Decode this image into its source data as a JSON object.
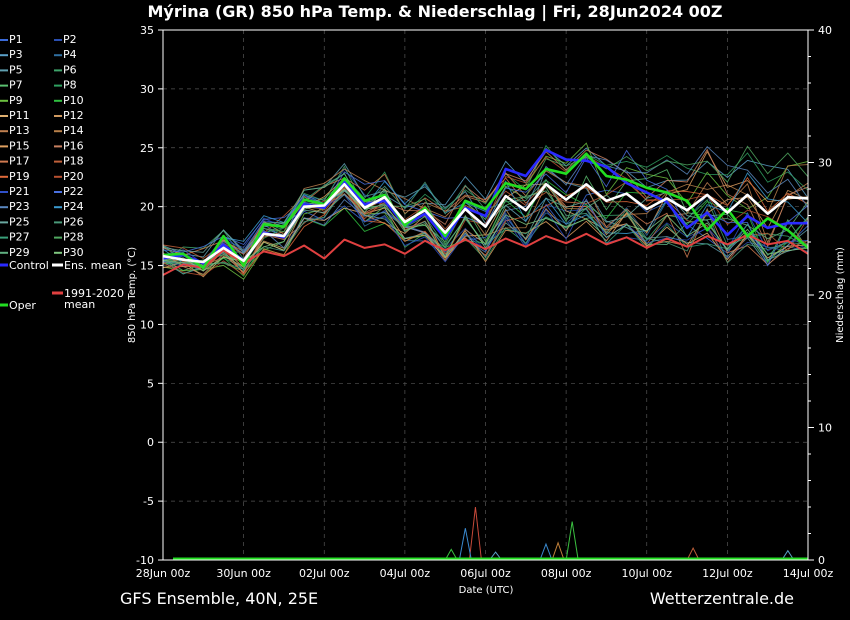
{
  "chart_data": {
    "type": "line",
    "title": "Mýrina  (GR)  850 hPa Temp. & Niederschlag | Fri, 28Jun2024 00Z",
    "xlabel": "Date (UTC)",
    "ylabel": "850 hPa Temp. (°C)",
    "ylabel_right": "Niederschlag (mm)",
    "ylim": [
      -10,
      35
    ],
    "ylim_right": [
      0,
      40
    ],
    "yticks": [
      "35",
      "30",
      "25",
      "20",
      "15",
      "10",
      "5",
      "0",
      "-5",
      "-10"
    ],
    "yticks_right": [
      "40",
      "30",
      "20",
      "10",
      "0"
    ],
    "xticks": [
      "28Jun 00z",
      "30Jun 00z",
      "02Jul 00z",
      "04Jul 00z",
      "06Jul 00z",
      "08Jul 00z",
      "10Jul 00z",
      "12Jul 00z",
      "14Jul 00z"
    ],
    "grid": true,
    "legend_position": "left",
    "legend": [
      "P1",
      "P2",
      "P3",
      "P4",
      "P5",
      "P6",
      "P7",
      "P8",
      "P9",
      "P10",
      "P11",
      "P12",
      "P13",
      "P14",
      "P15",
      "P16",
      "P17",
      "P18",
      "P19",
      "P20",
      "P21",
      "P22",
      "P23",
      "P24",
      "P25",
      "P26",
      "P27",
      "P28",
      "P29",
      "P30",
      "Control",
      "Ens. mean",
      "1991-2020 mean",
      "Oper"
    ],
    "x_step_hours": 12,
    "series": [
      {
        "name": "Control",
        "color": "#2a2aff",
        "values": [
          15.6,
          15.9,
          15.2,
          16.8,
          15.4,
          17.8,
          17.4,
          20.2,
          19.9,
          22.2,
          20.2,
          20.5,
          18.4,
          19.4,
          17.3,
          19.9,
          19.2,
          23.2,
          22.6,
          24.8,
          24.0,
          23.9,
          23.4,
          22.0,
          21.2,
          20.4,
          18.2,
          19.5,
          17.6,
          19.2,
          18.2,
          18.6,
          18.6
        ]
      },
      {
        "name": "Ens. mean",
        "color": "#ffffff",
        "values": [
          15.8,
          15.5,
          15.3,
          16.5,
          15.4,
          17.7,
          17.5,
          20.0,
          20.1,
          21.9,
          19.9,
          20.8,
          18.7,
          19.7,
          17.8,
          19.8,
          18.3,
          20.9,
          19.7,
          21.9,
          20.6,
          21.9,
          20.5,
          21.1,
          19.8,
          20.7,
          19.7,
          21.0,
          19.5,
          21.0,
          19.4,
          20.8,
          20.7
        ]
      },
      {
        "name": "1991-2020 mean",
        "color": "#e04040",
        "values": [
          14.2,
          15.1,
          14.8,
          16.3,
          15.2,
          16.2,
          15.8,
          16.7,
          15.6,
          17.2,
          16.5,
          16.8,
          16.0,
          17.1,
          16.3,
          17.2,
          16.4,
          17.3,
          16.6,
          17.5,
          16.9,
          17.7,
          16.8,
          17.4,
          16.5,
          17.3,
          16.6,
          17.5,
          16.8,
          17.6,
          16.8,
          17.1,
          16.0
        ]
      },
      {
        "name": "Oper",
        "color": "#22dd22",
        "values": [
          15.9,
          16.0,
          14.8,
          17.5,
          15.0,
          18.5,
          18.3,
          20.6,
          20.2,
          22.4,
          20.5,
          21.0,
          18.4,
          19.9,
          17.5,
          20.5,
          19.8,
          22.0,
          21.5,
          23.2,
          22.8,
          24.5,
          22.6,
          22.3,
          21.6,
          21.2,
          20.5,
          18.0,
          19.8,
          17.5,
          19.0,
          18.0,
          16.5
        ]
      }
    ]
  }
}
